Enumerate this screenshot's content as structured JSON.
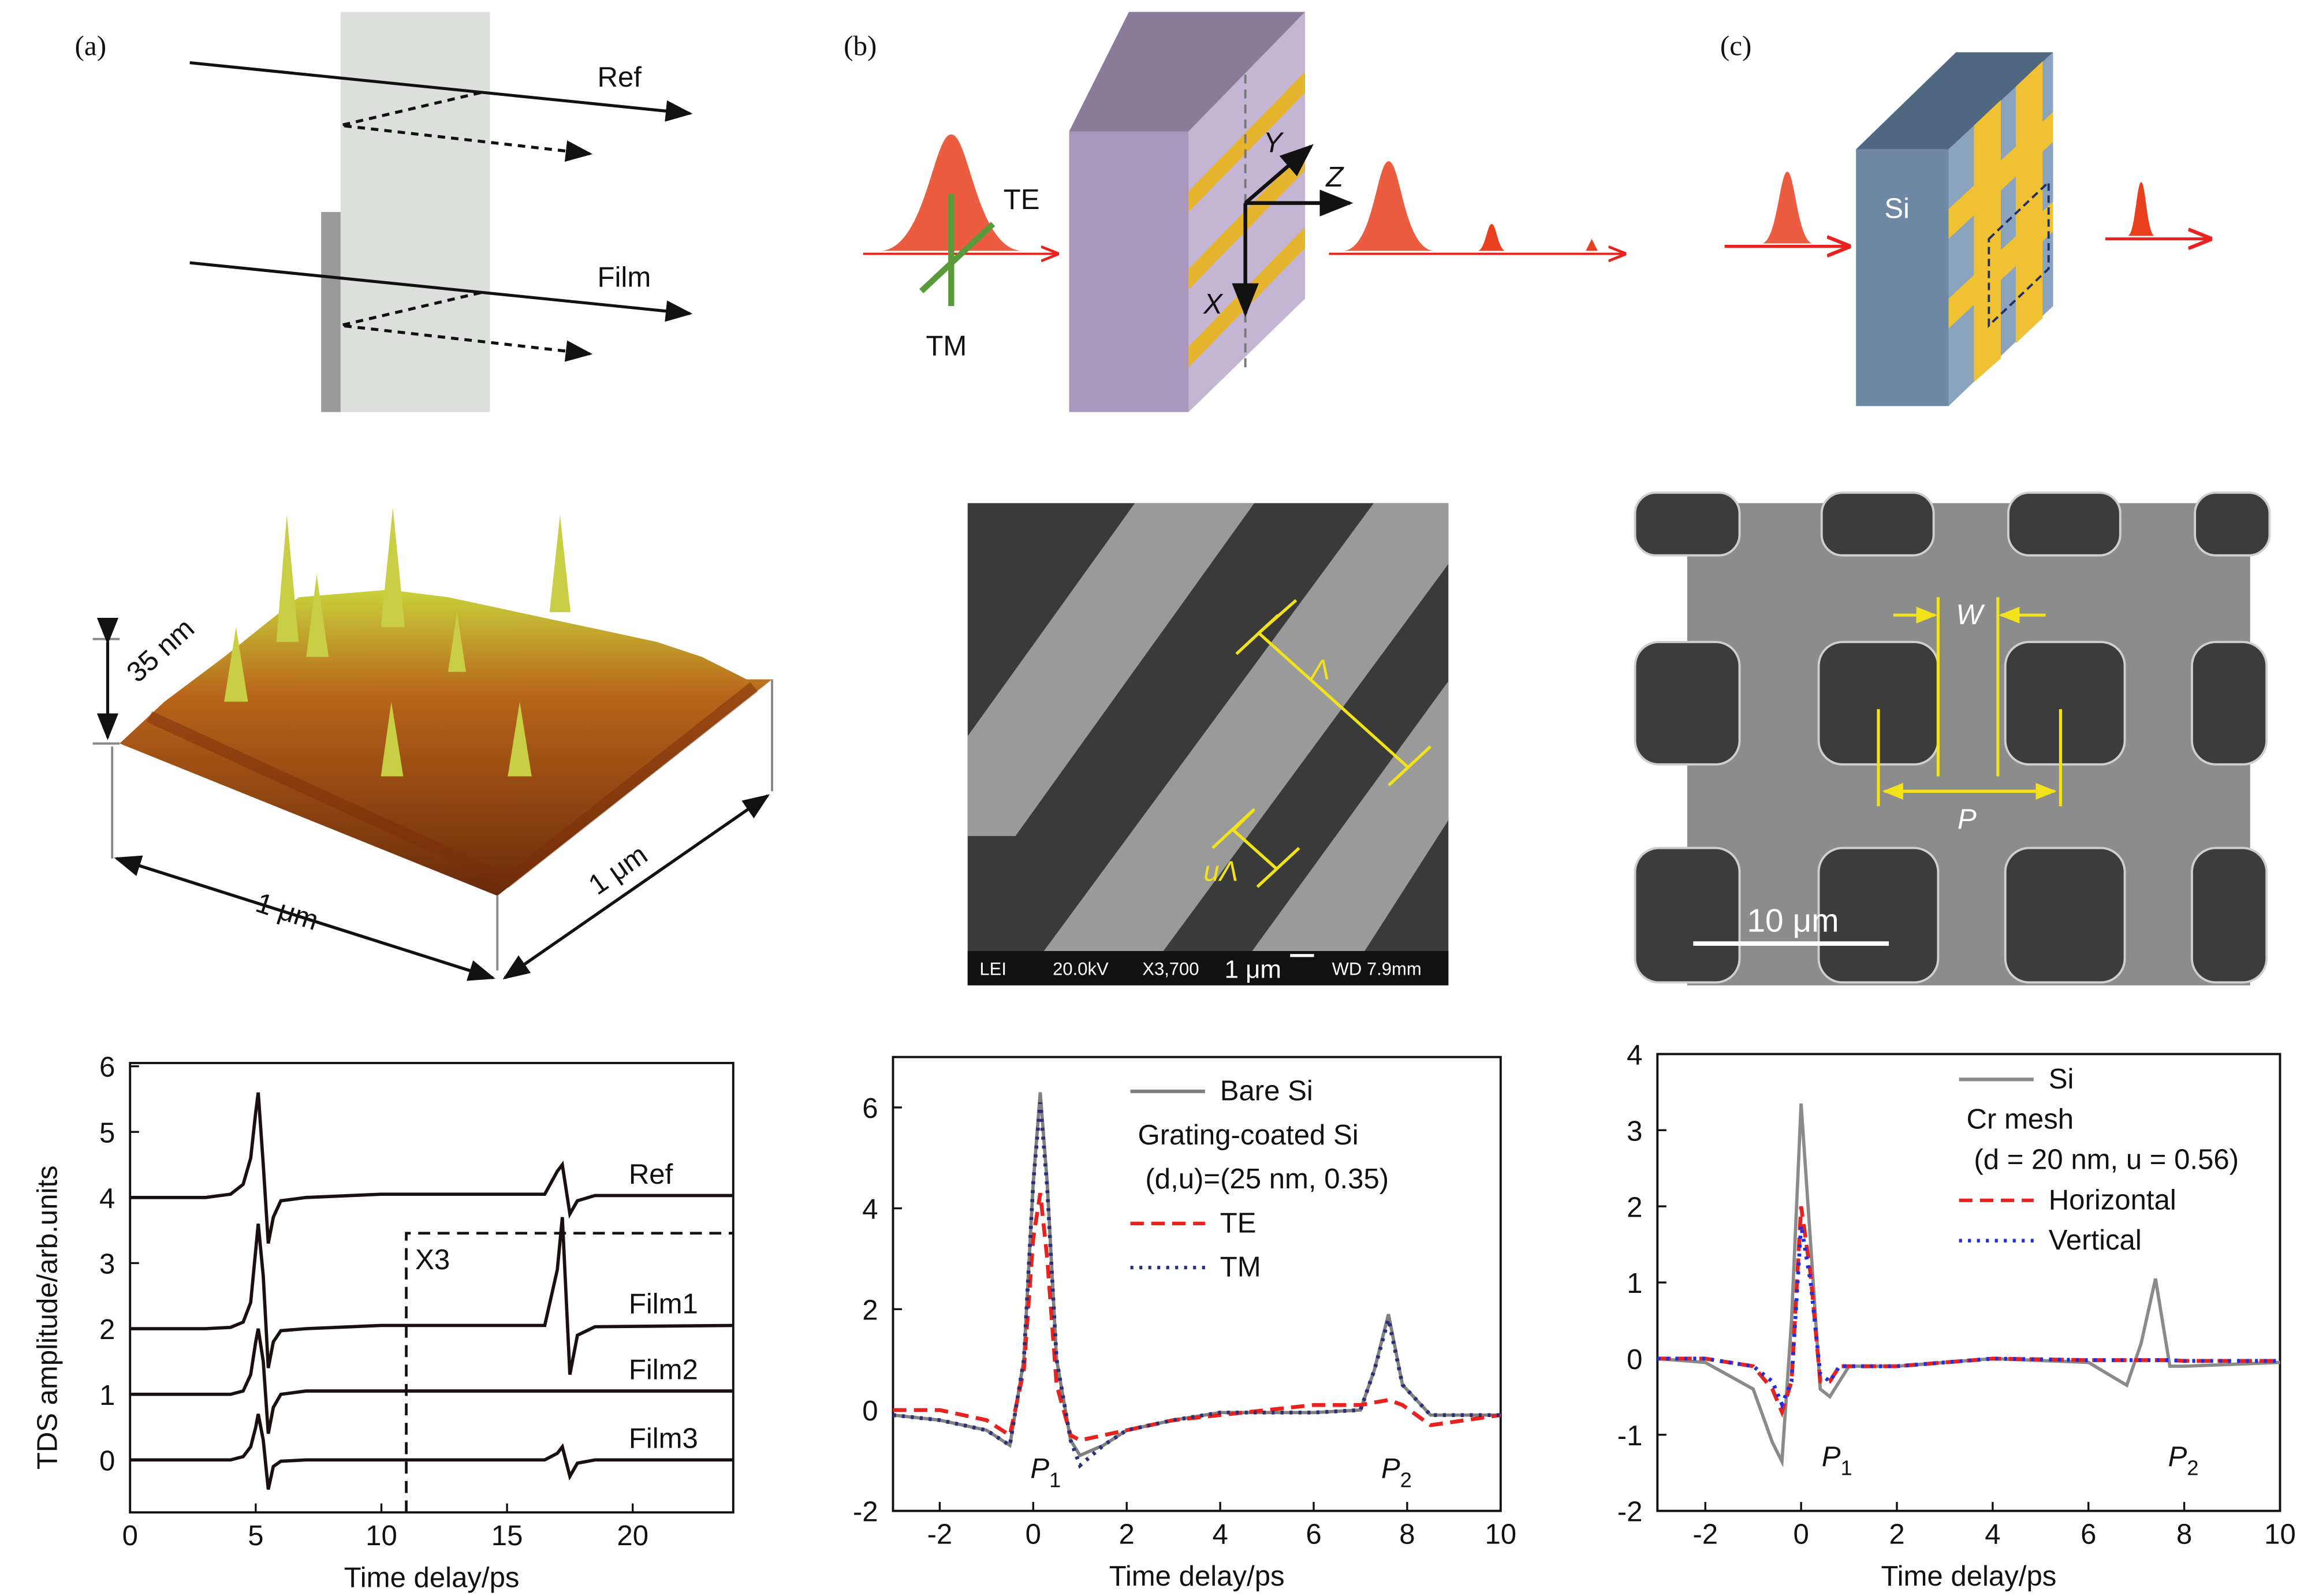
{
  "diagram": {
    "panel_labels": [
      "(a)",
      "(b)",
      "(c)"
    ],
    "a_beams": [
      "Ref",
      "Film"
    ],
    "b_labels": {
      "te": "TE",
      "tm": "TM",
      "x": "X",
      "y": "Y",
      "z": "Z"
    },
    "c_labels": {
      "si": "Si"
    },
    "afm": {
      "height": "35 nm",
      "width": "1 μm",
      "depth": "1 μm"
    },
    "sem_b": {
      "period": "Λ",
      "width": "uΛ",
      "info": [
        "LEI",
        "20.0kV",
        "X3,700",
        "1 μm",
        "WD 7.9mm"
      ]
    },
    "sem_c": {
      "w": "W",
      "p": "P",
      "scale": "10 μm"
    }
  },
  "chart_data": [
    {
      "type": "line",
      "x_label": "Time delay/ps",
      "y_label": "TDS amplitude/arb.units",
      "legend": "inline",
      "annotations": [
        {
          "text": "X3"
        }
      ],
      "x": [
        0,
        3,
        4,
        4.5,
        4.8,
        5.0,
        5.1,
        5.3,
        5.5,
        5.7,
        6.0,
        7,
        10,
        15,
        16.5,
        17.0,
        17.2,
        17.5,
        17.8,
        18.5,
        24
      ],
      "series": [
        {
          "name": "Ref",
          "color": "#1a1010",
          "style": "solid",
          "values": [
            4.0,
            4.0,
            4.05,
            4.2,
            4.6,
            5.3,
            5.6,
            4.5,
            3.3,
            3.7,
            3.95,
            4.0,
            4.05,
            4.05,
            4.05,
            4.4,
            4.5,
            3.75,
            3.95,
            4.03,
            4.03
          ]
        },
        {
          "name": "Film1",
          "color": "#1a1010",
          "style": "solid",
          "values": [
            2.0,
            2.0,
            2.02,
            2.1,
            2.4,
            3.2,
            3.6,
            2.8,
            1.4,
            1.8,
            1.97,
            2.0,
            2.05,
            2.05,
            2.05,
            2.9,
            3.7,
            1.3,
            1.9,
            2.03,
            2.05
          ]
        },
        {
          "name": "Film2",
          "color": "#1a1010",
          "style": "solid",
          "values": [
            1.0,
            1.0,
            1.0,
            1.05,
            1.3,
            1.8,
            2.0,
            1.5,
            0.4,
            0.8,
            1.0,
            1.05,
            1.05,
            1.05,
            1.05,
            1.05,
            1.05,
            1.05,
            1.05,
            1.05,
            1.05
          ]
        },
        {
          "name": "Film3",
          "color": "#1a1010",
          "style": "solid",
          "values": [
            0,
            0,
            0,
            0.05,
            0.2,
            0.5,
            0.7,
            0.3,
            -0.45,
            -0.1,
            -0.02,
            0,
            0,
            0,
            0,
            0.1,
            0.2,
            -0.25,
            -0.05,
            0,
            0
          ]
        }
      ],
      "xlim": [
        0,
        24
      ],
      "ylim": [
        -0.8,
        6.05
      ],
      "xticks": [
        0,
        5,
        10,
        15,
        20
      ],
      "yticks": [
        0,
        1,
        2,
        3,
        4,
        5,
        6
      ]
    },
    {
      "type": "line",
      "x_label": "Time delay/ps",
      "legend": "upper right",
      "legend_notes": [
        "Grating-coated Si",
        "(d,u)=(25 nm, 0.35)"
      ],
      "annotations": [
        {
          "text": "P",
          "sub": "1"
        },
        {
          "text": "P",
          "sub": "2"
        }
      ],
      "x": [
        -3,
        -2,
        -1,
        -0.5,
        -0.2,
        0,
        0.15,
        0.3,
        0.5,
        0.8,
        1.0,
        1.5,
        2,
        3,
        4,
        5,
        6,
        7,
        7.3,
        7.6,
        7.9,
        8.5,
        10
      ],
      "series": [
        {
          "name": "Bare Si",
          "color": "#808080",
          "style": "solid",
          "values": [
            -0.1,
            -0.2,
            -0.4,
            -0.7,
            1,
            4.5,
            6.3,
            4.5,
            1,
            -0.6,
            -0.9,
            -0.7,
            -0.4,
            -0.2,
            -0.05,
            -0.05,
            -0.05,
            0,
            0.8,
            1.9,
            0.5,
            -0.1,
            -0.1
          ]
        },
        {
          "name": "TE",
          "color": "#e8231f",
          "style": "dashed",
          "values": [
            0,
            0,
            -0.2,
            -0.5,
            0.8,
            3.4,
            4.3,
            3.0,
            0.5,
            -0.5,
            -0.6,
            -0.5,
            -0.4,
            -0.2,
            -0.1,
            0,
            0.1,
            0.1,
            0.15,
            0.2,
            0.1,
            -0.3,
            -0.1
          ]
        },
        {
          "name": "TM",
          "color": "#2b2f7a",
          "style": "dotted",
          "values": [
            -0.1,
            -0.2,
            -0.4,
            -0.7,
            1,
            4.5,
            6.1,
            4.4,
            1,
            -0.6,
            -1.1,
            -0.7,
            -0.4,
            -0.2,
            -0.05,
            -0.05,
            -0.05,
            0,
            0.8,
            1.8,
            0.5,
            -0.1,
            -0.1
          ]
        }
      ],
      "xlim": [
        -3,
        10
      ],
      "ylim": [
        -2,
        7
      ],
      "xticks": [
        -2,
        0,
        2,
        4,
        6,
        8,
        10
      ],
      "yticks": [
        -2,
        0,
        2,
        4,
        6
      ]
    },
    {
      "type": "line",
      "x_label": "Time delay/ps",
      "legend": "upper right",
      "legend_notes": [
        "Cr mesh",
        "(d = 20 nm, u = 0.56)"
      ],
      "annotations": [
        {
          "text": "P",
          "sub": "1"
        },
        {
          "text": "P",
          "sub": "2"
        }
      ],
      "x": [
        -3,
        -2,
        -1,
        -0.6,
        -0.4,
        -0.2,
        0,
        0.2,
        0.4,
        0.6,
        0.8,
        1,
        2,
        4,
        6,
        6.8,
        7.1,
        7.4,
        7.7,
        8,
        10
      ],
      "series": [
        {
          "name": "Si",
          "color": "#8a8a8a",
          "style": "solid",
          "values": [
            0,
            -0.05,
            -0.4,
            -1.1,
            -1.35,
            0.5,
            3.35,
            1.5,
            -0.4,
            -0.5,
            -0.3,
            -0.1,
            -0.1,
            0,
            -0.05,
            -0.35,
            0.2,
            1.05,
            -0.1,
            -0.1,
            -0.05
          ]
        },
        {
          "name": "Horizontal",
          "color": "#e8231f",
          "style": "dashed",
          "values": [
            0,
            0,
            -0.1,
            -0.4,
            -0.7,
            -0.3,
            2.0,
            1.1,
            -0.3,
            -0.3,
            -0.1,
            -0.1,
            -0.1,
            0,
            -0.02,
            -0.02,
            -0.02,
            -0.02,
            -0.02,
            -0.03,
            -0.03
          ]
        },
        {
          "name": "Vertical",
          "color": "#1f2ee0",
          "style": "dotted",
          "values": [
            0,
            0,
            -0.1,
            -0.3,
            -0.6,
            -0.3,
            1.75,
            1.0,
            -0.2,
            -0.3,
            -0.1,
            -0.1,
            -0.1,
            0,
            -0.02,
            -0.02,
            -0.02,
            -0.02,
            -0.02,
            -0.03,
            -0.03
          ]
        }
      ],
      "xlim": [
        -3,
        10
      ],
      "ylim": [
        -2,
        4
      ],
      "xticks": [
        -2,
        0,
        2,
        4,
        6,
        8,
        10
      ],
      "yticks": [
        -2,
        -1,
        0,
        1,
        2,
        3,
        4
      ]
    }
  ]
}
